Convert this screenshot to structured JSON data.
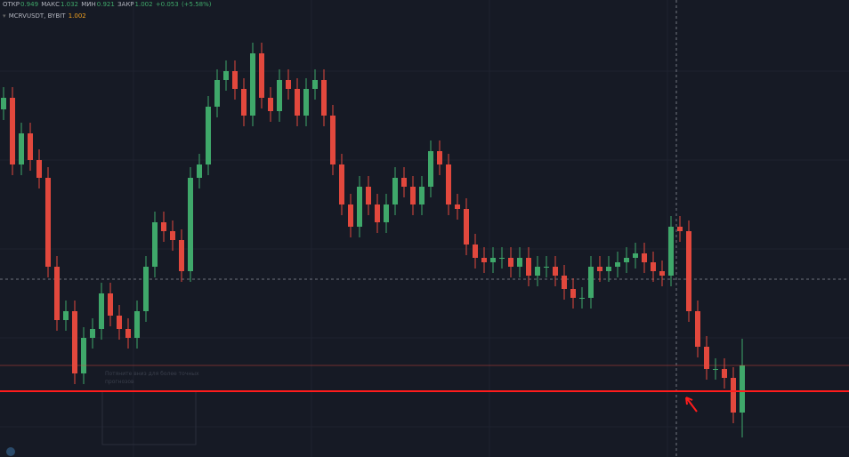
{
  "chart_data": {
    "type": "candlestick",
    "symbol": "MCRVUSDT, BYBIT",
    "ohlc_labels": [
      "ОТКР",
      "МАКС",
      "МИН",
      "ЗАКР"
    ],
    "change": "+0.053",
    "change_pct": "(+5.58%)",
    "hint": "Потяните вниз для более точных прогнозов",
    "ylim": [
      0.899,
      1.413
    ],
    "up_color": "#3fa86a",
    "down_color": "#e2483d",
    "levels": [
      {
        "value": 0.973,
        "color": "#ff1c1c"
      }
    ],
    "series": [
      {
        "name": "MCRVUSDT",
        "open": [
          1.29,
          1.303,
          1.228,
          1.263,
          1.233,
          1.213,
          1.113,
          1.053,
          1.063,
          0.993,
          1.033,
          1.043,
          1.083,
          1.058,
          1.043,
          1.033,
          1.063,
          1.113,
          1.163,
          1.153,
          1.143,
          1.108,
          1.213,
          1.228,
          1.293,
          1.323,
          1.333,
          1.313,
          1.283,
          1.353,
          1.303,
          1.288,
          1.323,
          1.313,
          1.283,
          1.313,
          1.323,
          1.283,
          1.228,
          1.183,
          1.158,
          1.203,
          1.183,
          1.163,
          1.183,
          1.213,
          1.203,
          1.183,
          1.203,
          1.243,
          1.228,
          1.183,
          1.178,
          1.138,
          1.123,
          1.118,
          1.123,
          1.123,
          1.113,
          1.123,
          1.103,
          1.113,
          1.113,
          1.103,
          1.088,
          1.078,
          1.078,
          1.113,
          1.108,
          1.113,
          1.118,
          1.123,
          1.128,
          1.118,
          1.108,
          1.103,
          1.158,
          1.153,
          1.063,
          1.023,
          0.998,
          0.998,
          0.988,
          0.949
        ],
        "high": [
          1.315,
          1.315,
          1.275,
          1.275,
          1.245,
          1.225,
          1.125,
          1.075,
          1.075,
          1.045,
          1.055,
          1.095,
          1.095,
          1.07,
          1.055,
          1.075,
          1.125,
          1.175,
          1.175,
          1.165,
          1.155,
          1.225,
          1.24,
          1.305,
          1.335,
          1.345,
          1.345,
          1.325,
          1.365,
          1.365,
          1.315,
          1.335,
          1.335,
          1.325,
          1.325,
          1.335,
          1.335,
          1.295,
          1.24,
          1.195,
          1.215,
          1.215,
          1.195,
          1.195,
          1.225,
          1.225,
          1.215,
          1.215,
          1.255,
          1.255,
          1.24,
          1.195,
          1.19,
          1.15,
          1.135,
          1.135,
          1.135,
          1.135,
          1.135,
          1.135,
          1.125,
          1.125,
          1.125,
          1.115,
          1.1,
          1.09,
          1.125,
          1.125,
          1.125,
          1.13,
          1.135,
          1.14,
          1.14,
          1.13,
          1.12,
          1.17,
          1.17,
          1.165,
          1.075,
          1.035,
          1.01,
          1.01,
          1.0,
          1.032
        ],
        "low": [
          1.278,
          1.216,
          1.216,
          1.221,
          1.201,
          1.101,
          1.041,
          1.041,
          0.981,
          0.981,
          1.021,
          1.031,
          1.046,
          1.031,
          1.021,
          1.021,
          1.051,
          1.101,
          1.141,
          1.131,
          1.096,
          1.096,
          1.201,
          1.216,
          1.281,
          1.311,
          1.301,
          1.271,
          1.271,
          1.291,
          1.276,
          1.276,
          1.301,
          1.271,
          1.271,
          1.301,
          1.271,
          1.216,
          1.171,
          1.146,
          1.146,
          1.171,
          1.151,
          1.151,
          1.171,
          1.191,
          1.171,
          1.171,
          1.191,
          1.216,
          1.171,
          1.166,
          1.126,
          1.111,
          1.106,
          1.106,
          1.111,
          1.101,
          1.101,
          1.091,
          1.091,
          1.101,
          1.091,
          1.076,
          1.066,
          1.066,
          1.066,
          1.096,
          1.096,
          1.101,
          1.106,
          1.111,
          1.106,
          1.096,
          1.091,
          1.091,
          1.141,
          1.051,
          1.011,
          0.986,
          0.986,
          0.976,
          0.937,
          0.921
        ],
        "close": [
          1.303,
          1.228,
          1.263,
          1.233,
          1.213,
          1.113,
          1.053,
          1.063,
          0.993,
          1.033,
          1.043,
          1.083,
          1.058,
          1.043,
          1.033,
          1.063,
          1.113,
          1.163,
          1.153,
          1.143,
          1.108,
          1.213,
          1.228,
          1.293,
          1.323,
          1.333,
          1.313,
          1.283,
          1.353,
          1.303,
          1.288,
          1.323,
          1.313,
          1.283,
          1.313,
          1.323,
          1.283,
          1.228,
          1.183,
          1.158,
          1.203,
          1.183,
          1.163,
          1.183,
          1.213,
          1.203,
          1.183,
          1.203,
          1.243,
          1.228,
          1.183,
          1.178,
          1.138,
          1.123,
          1.118,
          1.123,
          1.123,
          1.113,
          1.123,
          1.103,
          1.113,
          1.113,
          1.103,
          1.088,
          1.078,
          1.078,
          1.113,
          1.108,
          1.113,
          1.118,
          1.123,
          1.128,
          1.118,
          1.108,
          1.103,
          1.158,
          1.153,
          1.063,
          1.023,
          0.998,
          0.998,
          0.988,
          0.949,
          1.002
        ]
      }
    ]
  }
}
